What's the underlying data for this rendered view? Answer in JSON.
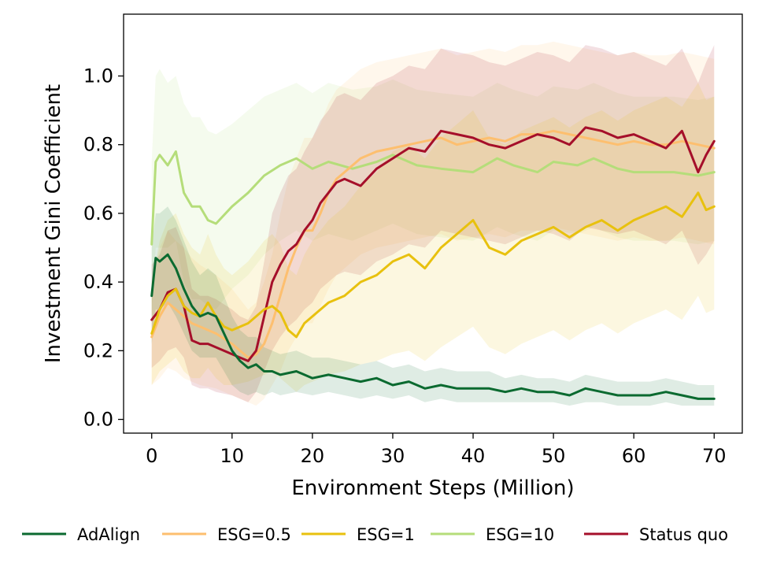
{
  "chart_data": {
    "type": "line",
    "title": "",
    "xlabel": "Environment Steps (Million)",
    "ylabel": "Investment Gini Coefficient",
    "xlim": [
      -3.5,
      73.5
    ],
    "ylim": [
      -0.04,
      1.18
    ],
    "xticks": [
      0,
      10,
      20,
      30,
      40,
      50,
      60,
      70
    ],
    "xtick_labels": [
      "0",
      "10",
      "20",
      "30",
      "40",
      "50",
      "60",
      "70"
    ],
    "yticks": [
      0.0,
      0.2,
      0.4,
      0.6,
      0.8,
      1.0
    ],
    "ytick_labels": [
      "0.0",
      "0.2",
      "0.4",
      "0.6",
      "0.8",
      "1.0"
    ],
    "grid": false,
    "legend_position": "bottom",
    "series": [
      {
        "name": "ESG=10",
        "color": "#b5dd7a",
        "x": [
          0,
          0.5,
          1,
          2,
          3,
          4,
          5,
          6,
          7,
          8,
          10,
          12,
          14,
          16,
          18,
          20,
          22,
          25,
          28,
          30,
          33,
          36,
          40,
          43,
          45,
          48,
          50,
          53,
          55,
          58,
          60,
          63,
          65,
          68,
          70
        ],
        "y": [
          0.51,
          0.75,
          0.77,
          0.74,
          0.78,
          0.66,
          0.62,
          0.62,
          0.58,
          0.57,
          0.62,
          0.66,
          0.71,
          0.74,
          0.76,
          0.73,
          0.75,
          0.73,
          0.75,
          0.77,
          0.74,
          0.73,
          0.72,
          0.76,
          0.74,
          0.72,
          0.75,
          0.74,
          0.76,
          0.73,
          0.72,
          0.72,
          0.72,
          0.71,
          0.72
        ],
        "lower": [
          0.3,
          0.5,
          0.5,
          0.5,
          0.52,
          0.4,
          0.35,
          0.35,
          0.33,
          0.32,
          0.38,
          0.42,
          0.48,
          0.52,
          0.55,
          0.52,
          0.54,
          0.52,
          0.55,
          0.57,
          0.54,
          0.53,
          0.52,
          0.56,
          0.54,
          0.52,
          0.55,
          0.54,
          0.56,
          0.53,
          0.52,
          0.52,
          0.52,
          0.51,
          0.52
        ],
        "upper": [
          0.75,
          1.0,
          1.02,
          0.98,
          1.0,
          0.92,
          0.88,
          0.88,
          0.84,
          0.83,
          0.86,
          0.9,
          0.94,
          0.96,
          0.98,
          0.95,
          0.98,
          0.96,
          0.97,
          0.99,
          0.96,
          0.95,
          0.94,
          0.98,
          0.96,
          0.94,
          0.97,
          0.96,
          0.98,
          0.95,
          0.94,
          0.94,
          0.94,
          0.93,
          0.94
        ]
      },
      {
        "name": "ESG=0.5",
        "color": "#fdbf6f",
        "x": [
          0,
          1,
          2,
          3,
          4,
          5,
          6,
          8,
          10,
          12,
          13,
          14,
          15,
          16,
          17,
          18,
          19,
          20,
          21,
          22,
          23,
          24,
          25,
          26,
          28,
          30,
          32,
          34,
          36,
          38,
          40,
          42,
          44,
          46,
          48,
          50,
          52,
          54,
          56,
          58,
          60,
          62,
          64,
          66,
          68,
          70
        ],
        "y": [
          0.24,
          0.3,
          0.34,
          0.32,
          0.3,
          0.28,
          0.27,
          0.25,
          0.22,
          0.18,
          0.19,
          0.22,
          0.28,
          0.36,
          0.44,
          0.5,
          0.55,
          0.55,
          0.6,
          0.66,
          0.7,
          0.72,
          0.74,
          0.76,
          0.78,
          0.79,
          0.8,
          0.81,
          0.82,
          0.8,
          0.81,
          0.82,
          0.81,
          0.83,
          0.83,
          0.84,
          0.83,
          0.82,
          0.81,
          0.8,
          0.81,
          0.8,
          0.8,
          0.81,
          0.8,
          0.79
        ],
        "lower": [
          0.1,
          0.12,
          0.15,
          0.14,
          0.12,
          0.11,
          0.1,
          0.09,
          0.07,
          0.05,
          0.04,
          0.06,
          0.1,
          0.14,
          0.2,
          0.24,
          0.28,
          0.28,
          0.33,
          0.38,
          0.42,
          0.44,
          0.46,
          0.48,
          0.5,
          0.51,
          0.52,
          0.53,
          0.54,
          0.52,
          0.53,
          0.54,
          0.53,
          0.55,
          0.55,
          0.56,
          0.55,
          0.54,
          0.53,
          0.52,
          0.53,
          0.52,
          0.52,
          0.53,
          0.52,
          0.51
        ],
        "upper": [
          0.4,
          0.5,
          0.55,
          0.52,
          0.5,
          0.47,
          0.45,
          0.42,
          0.38,
          0.32,
          0.34,
          0.4,
          0.48,
          0.6,
          0.7,
          0.76,
          0.82,
          0.82,
          0.86,
          0.92,
          0.96,
          0.98,
          1.0,
          1.02,
          1.04,
          1.05,
          1.06,
          1.07,
          1.08,
          1.06,
          1.07,
          1.08,
          1.07,
          1.09,
          1.09,
          1.1,
          1.09,
          1.08,
          1.07,
          1.06,
          1.07,
          1.06,
          1.06,
          1.07,
          1.06,
          1.05
        ]
      },
      {
        "name": "Status quo",
        "color": "#a50f2a",
        "x": [
          0,
          1,
          2,
          3,
          4,
          5,
          6,
          7,
          8,
          10,
          11,
          12,
          13,
          14,
          15,
          16,
          17,
          18,
          19,
          20,
          21,
          22,
          23,
          24,
          26,
          28,
          30,
          32,
          34,
          36,
          38,
          40,
          42,
          44,
          46,
          48,
          50,
          52,
          54,
          56,
          58,
          60,
          62,
          64,
          66,
          68,
          69,
          70
        ],
        "y": [
          0.29,
          0.32,
          0.37,
          0.38,
          0.33,
          0.23,
          0.22,
          0.22,
          0.21,
          0.19,
          0.18,
          0.17,
          0.2,
          0.3,
          0.4,
          0.45,
          0.49,
          0.51,
          0.55,
          0.58,
          0.63,
          0.66,
          0.69,
          0.7,
          0.68,
          0.73,
          0.76,
          0.79,
          0.78,
          0.84,
          0.83,
          0.82,
          0.8,
          0.79,
          0.81,
          0.83,
          0.82,
          0.8,
          0.85,
          0.84,
          0.82,
          0.83,
          0.81,
          0.79,
          0.84,
          0.72,
          0.77,
          0.81
        ],
        "lower": [
          0.15,
          0.17,
          0.2,
          0.21,
          0.18,
          0.1,
          0.09,
          0.09,
          0.08,
          0.07,
          0.06,
          0.05,
          0.08,
          0.14,
          0.2,
          0.24,
          0.27,
          0.29,
          0.32,
          0.34,
          0.38,
          0.4,
          0.42,
          0.43,
          0.42,
          0.46,
          0.48,
          0.51,
          0.5,
          0.55,
          0.54,
          0.53,
          0.52,
          0.51,
          0.53,
          0.55,
          0.54,
          0.52,
          0.56,
          0.55,
          0.54,
          0.55,
          0.53,
          0.51,
          0.55,
          0.45,
          0.48,
          0.52
        ],
        "upper": [
          0.45,
          0.48,
          0.55,
          0.56,
          0.5,
          0.38,
          0.36,
          0.36,
          0.35,
          0.32,
          0.3,
          0.29,
          0.33,
          0.46,
          0.6,
          0.66,
          0.71,
          0.73,
          0.78,
          0.82,
          0.87,
          0.9,
          0.94,
          0.95,
          0.93,
          0.98,
          1.0,
          1.03,
          1.02,
          1.08,
          1.07,
          1.06,
          1.04,
          1.03,
          1.05,
          1.07,
          1.06,
          1.04,
          1.09,
          1.08,
          1.06,
          1.07,
          1.05,
          1.03,
          1.08,
          0.98,
          1.04,
          1.09
        ]
      },
      {
        "name": "ESG=1",
        "color": "#e8c10e",
        "x": [
          0,
          1,
          2,
          3,
          4,
          5,
          6,
          7,
          8,
          9,
          10,
          12,
          14,
          15,
          16,
          17,
          18,
          19,
          20,
          22,
          24,
          26,
          28,
          30,
          32,
          34,
          36,
          38,
          40,
          42,
          44,
          46,
          48,
          50,
          52,
          54,
          56,
          58,
          60,
          62,
          64,
          66,
          68,
          69,
          70
        ],
        "y": [
          0.25,
          0.32,
          0.36,
          0.38,
          0.33,
          0.31,
          0.3,
          0.34,
          0.3,
          0.27,
          0.26,
          0.28,
          0.32,
          0.33,
          0.31,
          0.26,
          0.24,
          0.28,
          0.3,
          0.34,
          0.36,
          0.4,
          0.42,
          0.46,
          0.48,
          0.44,
          0.5,
          0.54,
          0.58,
          0.5,
          0.48,
          0.52,
          0.54,
          0.56,
          0.53,
          0.56,
          0.58,
          0.55,
          0.58,
          0.6,
          0.62,
          0.59,
          0.66,
          0.61,
          0.62
        ],
        "lower": [
          0.1,
          0.14,
          0.16,
          0.18,
          0.14,
          0.12,
          0.12,
          0.15,
          0.12,
          0.1,
          0.1,
          0.11,
          0.13,
          0.14,
          0.12,
          0.1,
          0.08,
          0.1,
          0.11,
          0.13,
          0.14,
          0.16,
          0.17,
          0.19,
          0.2,
          0.17,
          0.21,
          0.24,
          0.27,
          0.21,
          0.19,
          0.22,
          0.24,
          0.26,
          0.23,
          0.26,
          0.28,
          0.25,
          0.28,
          0.3,
          0.32,
          0.29,
          0.36,
          0.31,
          0.32
        ],
        "upper": [
          0.4,
          0.52,
          0.58,
          0.6,
          0.54,
          0.5,
          0.48,
          0.54,
          0.48,
          0.44,
          0.42,
          0.46,
          0.52,
          0.54,
          0.51,
          0.44,
          0.42,
          0.48,
          0.52,
          0.58,
          0.62,
          0.68,
          0.72,
          0.78,
          0.8,
          0.76,
          0.82,
          0.86,
          0.9,
          0.82,
          0.8,
          0.84,
          0.86,
          0.88,
          0.85,
          0.88,
          0.9,
          0.87,
          0.9,
          0.92,
          0.94,
          0.91,
          0.98,
          0.93,
          0.94
        ]
      },
      {
        "name": "AdAlign",
        "color": "#0b6a30",
        "x": [
          0,
          0.5,
          1,
          2,
          3,
          4,
          5,
          6,
          7,
          8,
          9,
          10,
          11,
          12,
          13,
          14,
          15,
          16,
          18,
          20,
          22,
          24,
          26,
          28,
          30,
          32,
          34,
          36,
          38,
          40,
          42,
          44,
          46,
          48,
          50,
          52,
          54,
          56,
          58,
          60,
          62,
          64,
          66,
          68,
          70
        ],
        "y": [
          0.36,
          0.47,
          0.46,
          0.48,
          0.44,
          0.38,
          0.33,
          0.3,
          0.31,
          0.3,
          0.25,
          0.2,
          0.17,
          0.15,
          0.16,
          0.14,
          0.14,
          0.13,
          0.14,
          0.12,
          0.13,
          0.12,
          0.11,
          0.12,
          0.1,
          0.11,
          0.09,
          0.1,
          0.09,
          0.09,
          0.09,
          0.08,
          0.09,
          0.08,
          0.08,
          0.07,
          0.09,
          0.08,
          0.07,
          0.07,
          0.07,
          0.08,
          0.07,
          0.06,
          0.06
        ],
        "lower": [
          0.22,
          0.32,
          0.32,
          0.34,
          0.3,
          0.25,
          0.2,
          0.18,
          0.18,
          0.18,
          0.14,
          0.1,
          0.08,
          0.07,
          0.08,
          0.07,
          0.08,
          0.07,
          0.08,
          0.07,
          0.08,
          0.07,
          0.06,
          0.07,
          0.06,
          0.07,
          0.05,
          0.06,
          0.05,
          0.05,
          0.05,
          0.05,
          0.05,
          0.05,
          0.05,
          0.04,
          0.05,
          0.05,
          0.04,
          0.04,
          0.04,
          0.05,
          0.04,
          0.04,
          0.04
        ],
        "upper": [
          0.5,
          0.6,
          0.6,
          0.62,
          0.58,
          0.52,
          0.46,
          0.42,
          0.44,
          0.42,
          0.36,
          0.3,
          0.26,
          0.24,
          0.24,
          0.21,
          0.2,
          0.19,
          0.2,
          0.18,
          0.18,
          0.17,
          0.16,
          0.17,
          0.15,
          0.16,
          0.14,
          0.15,
          0.14,
          0.14,
          0.14,
          0.12,
          0.13,
          0.12,
          0.12,
          0.11,
          0.13,
          0.12,
          0.11,
          0.11,
          0.11,
          0.12,
          0.11,
          0.1,
          0.1
        ]
      }
    ],
    "legend_order": [
      "AdAlign",
      "ESG=0.5",
      "ESG=1",
      "ESG=10",
      "Status quo"
    ]
  }
}
